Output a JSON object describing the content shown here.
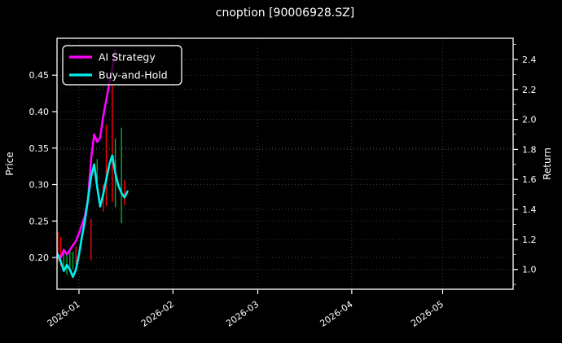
{
  "figure": {
    "background": "#000000",
    "text_color": "#ffffff"
  },
  "chart_data": {
    "type": "candlestick+line",
    "title": "cnoption [90006928.SZ]",
    "grid": {
      "on": true,
      "style": "dotted",
      "color": "#4d4d4d"
    },
    "spine_color": "#ffffff",
    "left_axis": {
      "label": "Price",
      "tick_labels": [
        "0.20",
        "0.25",
        "0.30",
        "0.35",
        "0.40",
        "0.45"
      ],
      "tick_values": [
        0.2,
        0.25,
        0.3,
        0.35,
        0.4,
        0.45
      ],
      "range": [
        0.1565,
        0.5005
      ]
    },
    "right_axis": {
      "label": "Return",
      "tick_labels": [
        "1.0",
        "1.2",
        "1.4",
        "1.6",
        "1.8",
        "2.0",
        "2.2",
        "2.4"
      ],
      "tick_values": [
        1.0,
        1.2,
        1.4,
        1.6,
        1.8,
        2.0,
        2.2,
        2.4
      ],
      "minor_tick_step": 0.1,
      "range": [
        0.868,
        2.541
      ]
    },
    "x_axis": {
      "tick_labels": [
        "2026-01",
        "2026-02",
        "2026-03",
        "2026-04",
        "2026-05"
      ],
      "tick_dates": [
        "2026-01-01",
        "2026-02-01",
        "2026-03-01",
        "2026-04-01",
        "2026-05-01"
      ],
      "range_days": [
        -7.25,
        143.25
      ],
      "label_rotation_deg": -35
    },
    "legend": {
      "position": "upper-left",
      "entries": [
        {
          "label": "AI Strategy",
          "color": "#ff00ff"
        },
        {
          "label": "Buy-and-Hold",
          "color": "#00eeee"
        }
      ]
    },
    "candles": {
      "up_color": "#00b140",
      "down_color": "#ff0000",
      "items": [
        {
          "date": "2025-12-25",
          "high": 0.235,
          "low": 0.194,
          "dir": "down"
        },
        {
          "date": "2025-12-26",
          "high": 0.228,
          "low": 0.188,
          "dir": "down"
        },
        {
          "date": "2025-12-27",
          "high": 0.212,
          "low": 0.187,
          "dir": "up"
        },
        {
          "date": "2025-12-28",
          "high": 0.206,
          "low": 0.176,
          "dir": "up"
        },
        {
          "date": "2025-12-29",
          "high": 0.211,
          "low": 0.186,
          "dir": "up"
        },
        {
          "date": "2025-12-30",
          "high": 0.208,
          "low": 0.184,
          "dir": "up"
        },
        {
          "date": "2025-12-31",
          "high": 0.215,
          "low": 0.191,
          "dir": "down"
        },
        {
          "date": "2026-01-05",
          "high": 0.253,
          "low": 0.196,
          "dir": "down"
        },
        {
          "date": "2026-01-07",
          "high": 0.335,
          "low": 0.298,
          "dir": "up"
        },
        {
          "date": "2026-01-09",
          "high": 0.3,
          "low": 0.263,
          "dir": "down"
        },
        {
          "date": "2026-01-10",
          "high": 0.382,
          "low": 0.271,
          "dir": "down"
        },
        {
          "date": "2026-01-12",
          "high": 0.436,
          "low": 0.276,
          "dir": "down"
        },
        {
          "date": "2026-01-13",
          "high": 0.363,
          "low": 0.269,
          "dir": "up"
        },
        {
          "date": "2026-01-15",
          "high": 0.378,
          "low": 0.247,
          "dir": "up"
        },
        {
          "date": "2026-01-16",
          "high": 0.306,
          "low": 0.272,
          "dir": "down"
        }
      ]
    },
    "series": [
      {
        "name": "AI Strategy",
        "color": "#ff00ff",
        "axis": "right",
        "points": [
          [
            "2025-12-25",
            1.1
          ],
          [
            "2025-12-26",
            1.08
          ],
          [
            "2025-12-27",
            1.13
          ],
          [
            "2025-12-28",
            1.1
          ],
          [
            "2025-12-29",
            1.13
          ],
          [
            "2025-12-30",
            1.16
          ],
          [
            "2025-12-31",
            1.19
          ],
          [
            "2026-01-01",
            1.24
          ],
          [
            "2026-01-02",
            1.3
          ],
          [
            "2026-01-03",
            1.36
          ],
          [
            "2026-01-04",
            1.47
          ],
          [
            "2026-01-05",
            1.74
          ],
          [
            "2026-01-06",
            1.9
          ],
          [
            "2026-01-07",
            1.85
          ],
          [
            "2026-01-08",
            1.88
          ],
          [
            "2026-01-09",
            2.02
          ],
          [
            "2026-01-10",
            2.13
          ],
          [
            "2026-01-11",
            2.24
          ],
          [
            "2026-01-12",
            2.34
          ],
          [
            "2026-01-13",
            2.46
          ]
        ]
      },
      {
        "name": "Buy-and-Hold",
        "color": "#00eeee",
        "axis": "right",
        "points": [
          [
            "2025-12-24",
            1.07
          ],
          [
            "2025-12-25",
            1.1
          ],
          [
            "2025-12-26",
            1.05
          ],
          [
            "2025-12-27",
            0.99
          ],
          [
            "2025-12-28",
            1.03
          ],
          [
            "2025-12-29",
            1.0
          ],
          [
            "2025-12-30",
            0.95
          ],
          [
            "2025-12-31",
            1.0
          ],
          [
            "2026-01-01",
            1.1
          ],
          [
            "2026-01-02",
            1.22
          ],
          [
            "2026-01-03",
            1.33
          ],
          [
            "2026-01-04",
            1.47
          ],
          [
            "2026-01-05",
            1.62
          ],
          [
            "2026-01-06",
            1.7
          ],
          [
            "2026-01-07",
            1.55
          ],
          [
            "2026-01-08",
            1.42
          ],
          [
            "2026-01-09",
            1.5
          ],
          [
            "2026-01-10",
            1.6
          ],
          [
            "2026-01-11",
            1.7
          ],
          [
            "2026-01-12",
            1.76
          ],
          [
            "2026-01-13",
            1.64
          ],
          [
            "2026-01-14",
            1.56
          ],
          [
            "2026-01-15",
            1.51
          ],
          [
            "2026-01-16",
            1.48
          ],
          [
            "2026-01-17",
            1.52
          ]
        ]
      }
    ]
  }
}
